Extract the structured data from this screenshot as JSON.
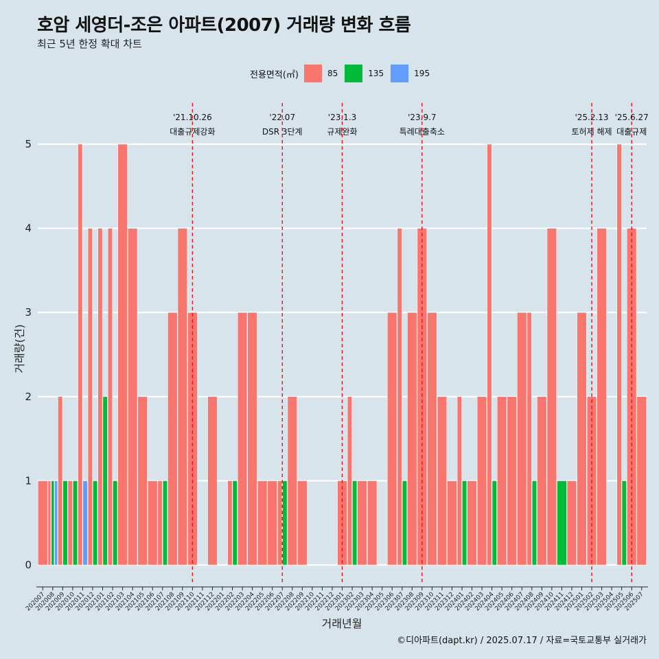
{
  "title": "호암 세영더-조은 아파트(2007) 거래량 변화 흐름",
  "subtitle": "최근 5년 한정 확대 차트",
  "caption": "©디아파트(dapt.kr) / 2025.07.17 / 자료=국토교통부 실거래가",
  "legend": {
    "title": "전용면적(㎡)",
    "items": [
      {
        "label": "85",
        "color": "#f8766d"
      },
      {
        "label": "135",
        "color": "#00ba38"
      },
      {
        "label": "195",
        "color": "#619cff"
      }
    ]
  },
  "chart_data": {
    "type": "bar",
    "xlabel": "거래년월",
    "ylabel": "거래량(건)",
    "ylim": [
      0,
      5
    ],
    "yticks": [
      0,
      1,
      2,
      3,
      4,
      5
    ],
    "grid": true,
    "legend_position": "top",
    "categories": [
      "202007",
      "202008",
      "202009",
      "202010",
      "202011",
      "202012",
      "202101",
      "202102",
      "202103",
      "202104",
      "202105",
      "202106",
      "202107",
      "202108",
      "202109",
      "202110",
      "202111",
      "202112",
      "202201",
      "202202",
      "202203",
      "202204",
      "202205",
      "202206",
      "202207",
      "202208",
      "202209",
      "202210",
      "202211",
      "202212",
      "202301",
      "202302",
      "202303",
      "202304",
      "202305",
      "202306",
      "202307",
      "202308",
      "202309",
      "202310",
      "202311",
      "202312",
      "202401",
      "202402",
      "202403",
      "202404",
      "202405",
      "202406",
      "202407",
      "202408",
      "202409",
      "202410",
      "202411",
      "202412",
      "202501",
      "202502",
      "202503",
      "202504",
      "202505",
      "202506",
      "202507"
    ],
    "series": [
      {
        "name": "85",
        "color": "#f8766d",
        "values": [
          1,
          1,
          2,
          1,
          5,
          4,
          4,
          4,
          5,
          4,
          2,
          1,
          1,
          3,
          4,
          3,
          0,
          2,
          0,
          1,
          3,
          3,
          1,
          1,
          1,
          2,
          1,
          0,
          0,
          0,
          1,
          2,
          1,
          1,
          0,
          3,
          4,
          3,
          4,
          3,
          2,
          1,
          2,
          1,
          2,
          5,
          2,
          2,
          3,
          3,
          2,
          4,
          0,
          1,
          3,
          2,
          4,
          0,
          5,
          4,
          2
        ]
      },
      {
        "name": "135",
        "color": "#00ba38",
        "values": [
          0,
          1,
          1,
          1,
          0,
          1,
          2,
          1,
          0,
          0,
          0,
          0,
          1,
          0,
          0,
          0,
          0,
          0,
          0,
          1,
          0,
          0,
          0,
          0,
          1,
          0,
          0,
          0,
          0,
          0,
          0,
          1,
          0,
          0,
          0,
          0,
          1,
          0,
          0,
          0,
          0,
          0,
          1,
          0,
          0,
          1,
          0,
          0,
          0,
          1,
          0,
          0,
          1,
          0,
          0,
          0,
          0,
          0,
          1,
          0,
          0
        ]
      },
      {
        "name": "195",
        "color": "#619cff",
        "values": [
          0,
          1,
          0,
          0,
          1,
          0,
          0,
          0,
          0,
          0,
          0,
          0,
          0,
          0,
          0,
          0,
          0,
          0,
          0,
          0,
          0,
          0,
          0,
          0,
          0,
          0,
          0,
          0,
          0,
          0,
          0,
          0,
          0,
          0,
          0,
          0,
          0,
          0,
          0,
          0,
          0,
          0,
          0,
          0,
          0,
          0,
          0,
          0,
          0,
          0,
          0,
          0,
          0,
          0,
          0,
          0,
          0,
          0,
          0,
          0,
          0
        ]
      }
    ],
    "annotations": [
      {
        "x": "202110",
        "date": "'21.10.26",
        "label": "대출규제강화"
      },
      {
        "x": "202207",
        "date": "'22.07",
        "label": "DSR 3단계"
      },
      {
        "x": "202301",
        "date": "'23.1.3",
        "label": "규제완화"
      },
      {
        "x": "202309",
        "date": "'23.9.7",
        "label": "특례대출축소"
      },
      {
        "x": "202502",
        "date": "'25.2.13",
        "label": "토허제 해제"
      },
      {
        "x": "202506",
        "date": "'25.6.27",
        "label": "대출규제"
      }
    ]
  }
}
